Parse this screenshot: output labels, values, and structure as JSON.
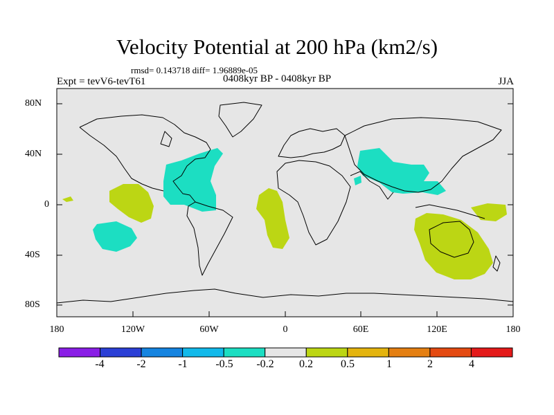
{
  "title": "Velocity Potential at 200 hPa (km2/s)",
  "stats_text": "rmsd= 0.143718 diff= 1.96889e-05",
  "experiment_label": "Expt = tevV6-tevT61",
  "period_label": "0408kyr BP - 0408kyr BP",
  "season_label": "JJA",
  "y_ticks": [
    "80N",
    "40N",
    "0",
    "40S",
    "80S"
  ],
  "x_ticks": [
    "180",
    "120W",
    "60W",
    "0",
    "60E",
    "120E",
    "180"
  ],
  "colorbar": {
    "tick_labels": [
      "-4",
      "-2",
      "-1",
      "-0.5",
      "-0.2",
      "0.2",
      "0.5",
      "1",
      "2",
      "4"
    ],
    "colors": [
      "#8a1ee6",
      "#2b3fd6",
      "#1584e0",
      "#12b9ea",
      "#1cdec2",
      "#e6e6e6",
      "#bcd614",
      "#e4b40e",
      "#e47f12",
      "#e44a12",
      "#e41a1a"
    ]
  },
  "colors": {
    "background": "#e6e6e6",
    "negative_anomaly": "#1cdec2",
    "positive_anomaly": "#bcd614"
  },
  "map": {
    "projection": "cylindrical-equidistant",
    "lon_range": [
      -180,
      180
    ],
    "lat_range": [
      -90,
      90
    ]
  }
}
